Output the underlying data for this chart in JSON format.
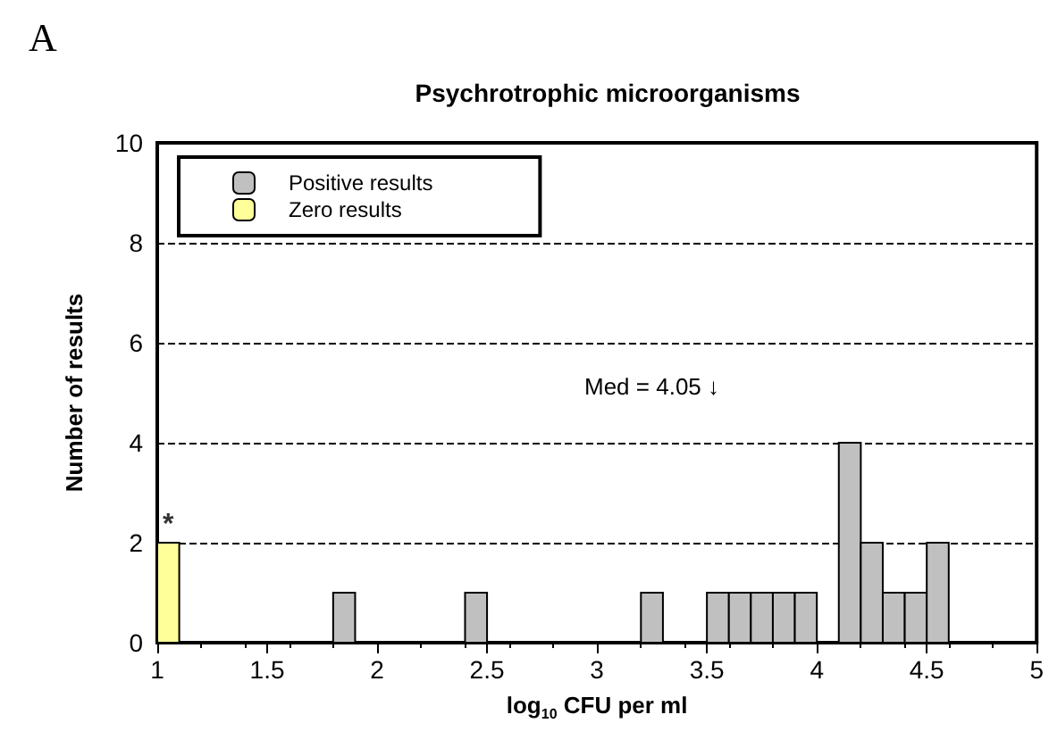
{
  "chart_data": {
    "type": "histogram",
    "title": "Psychrotrophic microorganisms",
    "xlabel": "log$_{10}$ CFU per ml",
    "ylabel": "Number of results",
    "bins": [
      1.0,
      1.1,
      1.2,
      1.3,
      1.4,
      1.5,
      1.6,
      1.7,
      1.8,
      1.9,
      2.0,
      2.1,
      2.2,
      2.3,
      2.4,
      2.5,
      2.6,
      2.7,
      2.8,
      2.9,
      3.0,
      3.1,
      3.2,
      3.3,
      3.4,
      3.5,
      3.6,
      3.7,
      3.8,
      3.9,
      4.0,
      4.1,
      4.2,
      4.3,
      4.4,
      4.5,
      4.6,
      4.7,
      4.8,
      4.9,
      5.0
    ],
    "series": [
      {
        "name": "Positive results",
        "color": "#c0c0c0",
        "values": [
          0,
          0,
          0,
          0,
          0,
          0,
          0,
          0,
          1,
          0,
          0,
          0,
          0,
          0,
          1,
          0,
          0,
          0,
          0,
          0,
          0,
          0,
          1,
          0,
          0,
          1,
          1,
          1,
          1,
          1,
          0,
          4,
          2,
          1,
          1,
          2,
          0,
          0,
          0,
          0
        ]
      },
      {
        "name": "Zero results",
        "color": "#ffff99",
        "values": [
          2,
          0,
          0,
          0,
          0,
          0,
          0,
          0,
          0,
          0,
          0,
          0,
          0,
          0,
          0,
          0,
          0,
          0,
          0,
          0,
          0,
          0,
          0,
          0,
          0,
          0,
          0,
          0,
          0,
          0,
          0,
          0,
          0,
          0,
          0,
          0,
          0,
          0,
          0,
          0
        ]
      }
    ],
    "xlim": [
      1,
      5
    ],
    "xticks": [
      1,
      1.5,
      2,
      2.5,
      3,
      3.5,
      4,
      4.5,
      5
    ],
    "ylim": [
      0,
      10
    ],
    "yticks": [
      0,
      2,
      4,
      6,
      8,
      10
    ],
    "grid": "y",
    "legend": "top left",
    "annotations": [
      "A",
      {
        "text": "*",
        "x": 1.05,
        "y": 2
      },
      "Med = 4.05 ↓"
    ]
  }
}
